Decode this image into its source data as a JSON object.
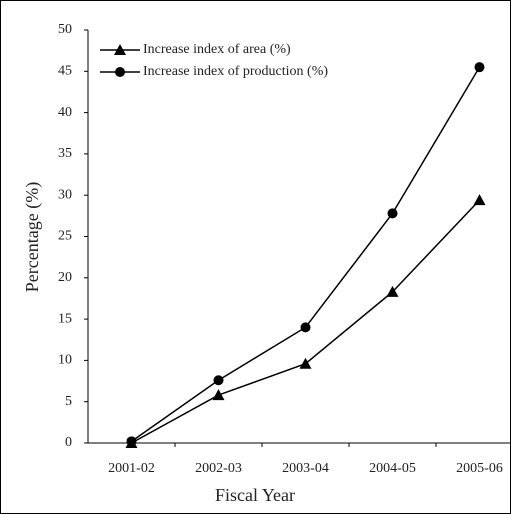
{
  "chart_data": {
    "type": "line",
    "categories": [
      "2001-02",
      "2002-03",
      "2003-04",
      "2004-05",
      "2005-06"
    ],
    "series": [
      {
        "name": "Increase index of area (%)",
        "color": "#000000",
        "marker": "triangle",
        "values": [
          0,
          5.8,
          9.6,
          18.3,
          29.4
        ]
      },
      {
        "name": "Increase index of production (%)",
        "color": "#000000",
        "marker": "circle",
        "values": [
          0.2,
          7.6,
          14,
          27.8,
          45.5
        ]
      }
    ],
    "ylim": [
      0,
      50
    ],
    "yticks": [
      0,
      5,
      10,
      15,
      20,
      25,
      30,
      35,
      40,
      45,
      50
    ],
    "xlabel": "Fiscal Year",
    "ylabel": "Percentage (%)",
    "grid": false,
    "legend": "top-left"
  }
}
